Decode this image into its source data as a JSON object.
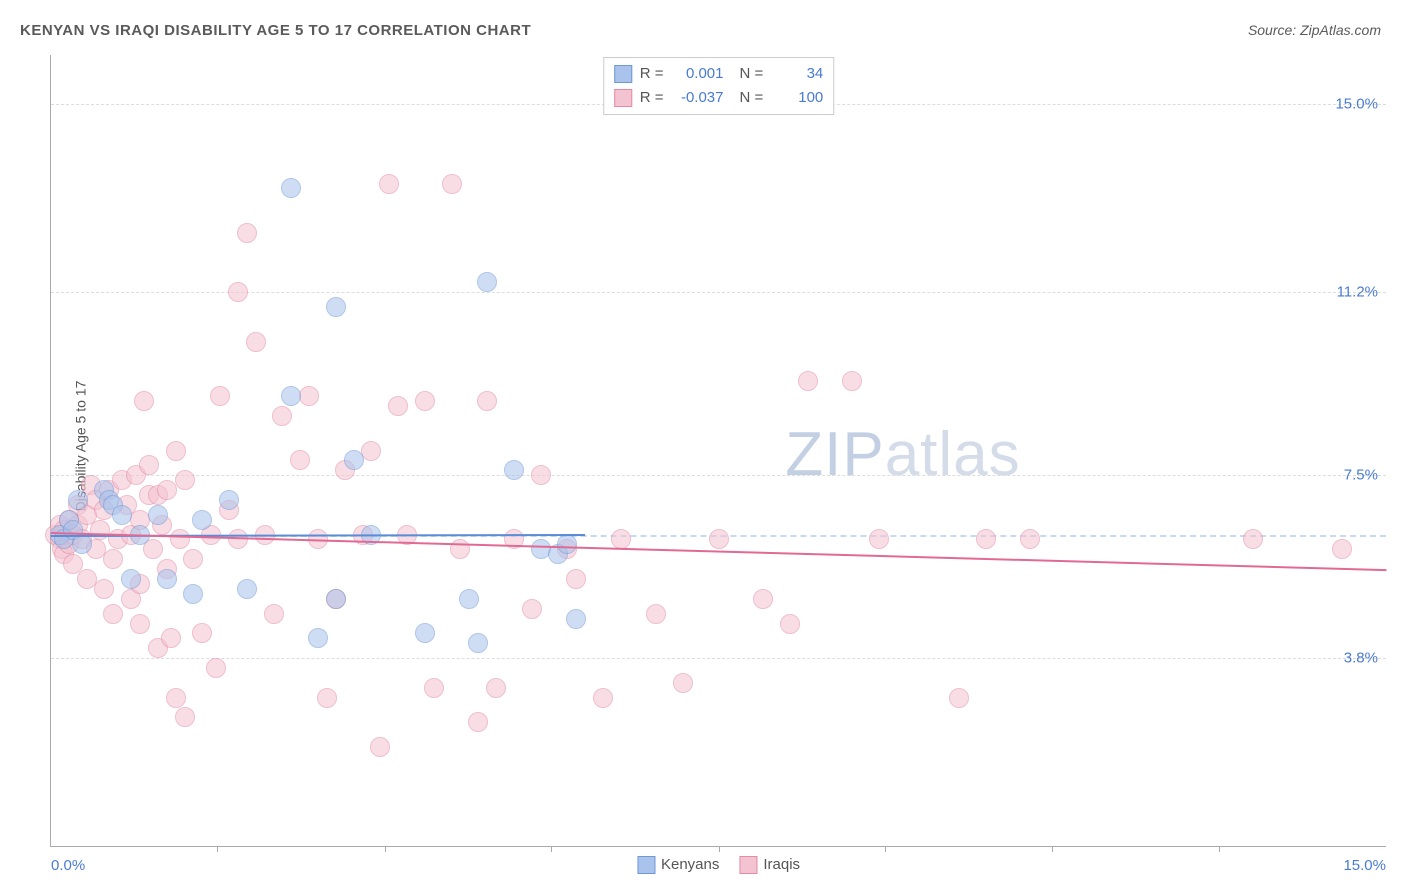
{
  "title": "KENYAN VS IRAQI DISABILITY AGE 5 TO 17 CORRELATION CHART",
  "source": "Source: ZipAtlas.com",
  "y_axis_label": "Disability Age 5 to 17",
  "watermark_zip": "ZIP",
  "watermark_atlas": "atlas",
  "chart": {
    "type": "scatter",
    "background_color": "#ffffff",
    "grid_color": "#dddddd",
    "ref_line_color": "#c9d9f0",
    "axis_color": "#aaaaaa",
    "tick_label_color": "#4a7bd0",
    "text_color": "#5a5a5a",
    "xlim": [
      0,
      15
    ],
    "ylim": [
      0,
      16
    ],
    "x_ticks": [
      {
        "pos": 0,
        "label": "0.0%"
      },
      {
        "pos": 15,
        "label": "15.0%"
      }
    ],
    "x_minor_ticks": [
      1.87,
      3.75,
      5.62,
      7.5,
      9.37,
      11.25,
      13.12
    ],
    "y_ticks": [
      {
        "pos": 3.8,
        "label": "3.8%"
      },
      {
        "pos": 7.5,
        "label": "7.5%"
      },
      {
        "pos": 11.2,
        "label": "11.2%"
      },
      {
        "pos": 15.0,
        "label": "15.0%"
      }
    ],
    "reference_y": 6.3,
    "marker_radius": 10,
    "marker_opacity": 0.55,
    "marker_border_width": 1.5,
    "series": [
      {
        "id": "kenyans",
        "label": "Kenyans",
        "fill_color": "#a9c3ec",
        "border_color": "#6f98d7",
        "trend": {
          "x0": 0,
          "y0": 6.3,
          "x1": 6.0,
          "y1": 6.32,
          "color": "#5a8cd8",
          "width": 2
        },
        "R_label": "R =",
        "R_value": "0.001",
        "N_label": "N =",
        "N_value": "34",
        "points": [
          [
            0.1,
            6.3
          ],
          [
            0.15,
            6.2
          ],
          [
            0.2,
            6.6
          ],
          [
            0.25,
            6.4
          ],
          [
            0.3,
            7.0
          ],
          [
            0.35,
            6.1
          ],
          [
            0.6,
            7.2
          ],
          [
            0.65,
            7.0
          ],
          [
            0.7,
            6.9
          ],
          [
            0.8,
            6.7
          ],
          [
            0.9,
            5.4
          ],
          [
            1.0,
            6.3
          ],
          [
            1.2,
            6.7
          ],
          [
            1.3,
            5.4
          ],
          [
            1.6,
            5.1
          ],
          [
            1.7,
            6.6
          ],
          [
            2.0,
            7.0
          ],
          [
            2.2,
            5.2
          ],
          [
            2.7,
            13.3
          ],
          [
            2.7,
            9.1
          ],
          [
            3.0,
            4.2
          ],
          [
            3.2,
            10.9
          ],
          [
            3.2,
            5.0
          ],
          [
            3.4,
            7.8
          ],
          [
            3.6,
            6.3
          ],
          [
            4.2,
            4.3
          ],
          [
            4.7,
            5.0
          ],
          [
            4.8,
            4.1
          ],
          [
            4.9,
            11.4
          ],
          [
            5.2,
            7.6
          ],
          [
            5.5,
            6.0
          ],
          [
            5.7,
            5.9
          ],
          [
            5.8,
            6.1
          ],
          [
            5.9,
            4.6
          ]
        ]
      },
      {
        "id": "iraqis",
        "label": "Iraqis",
        "fill_color": "#f4c3d1",
        "border_color": "#e38aa5",
        "trend": {
          "x0": 0,
          "y0": 6.35,
          "x1": 15.0,
          "y1": 5.6,
          "color": "#e16a94",
          "width": 2
        },
        "R_label": "R =",
        "R_value": "-0.037",
        "N_label": "N =",
        "N_value": "100",
        "points": [
          [
            0.05,
            6.3
          ],
          [
            0.1,
            6.2
          ],
          [
            0.1,
            6.5
          ],
          [
            0.12,
            6.0
          ],
          [
            0.15,
            6.4
          ],
          [
            0.15,
            5.9
          ],
          [
            0.2,
            6.6
          ],
          [
            0.2,
            6.1
          ],
          [
            0.25,
            6.3
          ],
          [
            0.25,
            5.7
          ],
          [
            0.3,
            6.5
          ],
          [
            0.3,
            6.9
          ],
          [
            0.35,
            6.2
          ],
          [
            0.4,
            5.4
          ],
          [
            0.4,
            6.7
          ],
          [
            0.45,
            7.3
          ],
          [
            0.5,
            6.0
          ],
          [
            0.5,
            7.0
          ],
          [
            0.55,
            6.4
          ],
          [
            0.6,
            5.2
          ],
          [
            0.6,
            6.8
          ],
          [
            0.65,
            7.2
          ],
          [
            0.7,
            5.8
          ],
          [
            0.7,
            4.7
          ],
          [
            0.75,
            6.2
          ],
          [
            0.8,
            7.4
          ],
          [
            0.85,
            6.9
          ],
          [
            0.9,
            6.3
          ],
          [
            0.9,
            5.0
          ],
          [
            0.95,
            7.5
          ],
          [
            1.0,
            6.6
          ],
          [
            1.0,
            5.3
          ],
          [
            1.0,
            4.5
          ],
          [
            1.05,
            9.0
          ],
          [
            1.1,
            7.1
          ],
          [
            1.1,
            7.7
          ],
          [
            1.15,
            6.0
          ],
          [
            1.2,
            4.0
          ],
          [
            1.2,
            7.1
          ],
          [
            1.25,
            6.5
          ],
          [
            1.3,
            5.6
          ],
          [
            1.3,
            7.2
          ],
          [
            1.35,
            4.2
          ],
          [
            1.4,
            8.0
          ],
          [
            1.4,
            3.0
          ],
          [
            1.45,
            6.2
          ],
          [
            1.5,
            2.6
          ],
          [
            1.5,
            7.4
          ],
          [
            1.6,
            5.8
          ],
          [
            1.7,
            4.3
          ],
          [
            1.8,
            6.3
          ],
          [
            1.85,
            3.6
          ],
          [
            1.9,
            9.1
          ],
          [
            2.0,
            6.8
          ],
          [
            2.1,
            6.2
          ],
          [
            2.1,
            11.2
          ],
          [
            2.2,
            12.4
          ],
          [
            2.3,
            10.2
          ],
          [
            2.4,
            6.3
          ],
          [
            2.5,
            4.7
          ],
          [
            2.6,
            8.7
          ],
          [
            2.8,
            7.8
          ],
          [
            2.9,
            9.1
          ],
          [
            3.0,
            6.2
          ],
          [
            3.1,
            3.0
          ],
          [
            3.2,
            5.0
          ],
          [
            3.3,
            7.6
          ],
          [
            3.5,
            6.3
          ],
          [
            3.6,
            8.0
          ],
          [
            3.7,
            2.0
          ],
          [
            3.8,
            13.4
          ],
          [
            3.9,
            8.9
          ],
          [
            4.0,
            6.3
          ],
          [
            4.2,
            9.0
          ],
          [
            4.3,
            3.2
          ],
          [
            4.5,
            13.4
          ],
          [
            4.6,
            6.0
          ],
          [
            4.8,
            2.5
          ],
          [
            4.9,
            9.0
          ],
          [
            5.0,
            3.2
          ],
          [
            5.2,
            6.2
          ],
          [
            5.4,
            4.8
          ],
          [
            5.5,
            7.5
          ],
          [
            5.8,
            6.0
          ],
          [
            5.9,
            5.4
          ],
          [
            6.2,
            3.0
          ],
          [
            6.4,
            6.2
          ],
          [
            6.8,
            4.7
          ],
          [
            7.1,
            3.3
          ],
          [
            7.5,
            6.2
          ],
          [
            8.0,
            5.0
          ],
          [
            8.3,
            4.5
          ],
          [
            8.5,
            9.4
          ],
          [
            9.0,
            9.4
          ],
          [
            9.3,
            6.2
          ],
          [
            10.2,
            3.0
          ],
          [
            10.5,
            6.2
          ],
          [
            11.0,
            6.2
          ],
          [
            13.5,
            6.2
          ],
          [
            14.5,
            6.0
          ]
        ]
      }
    ]
  },
  "legend_top": {
    "border_color": "#cccccc"
  },
  "legend_bottom_items": [
    "Kenyans",
    "Iraqis"
  ]
}
